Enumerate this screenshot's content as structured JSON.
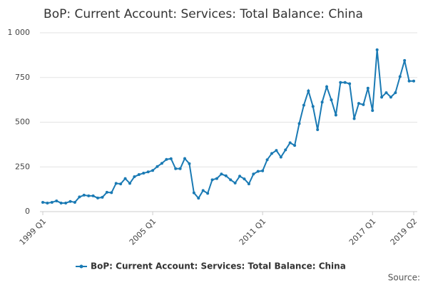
{
  "chart_data": {
    "type": "line",
    "title": "BoP: Current Account: Services: Total Balance: China",
    "categories": [
      "1999 Q1",
      null,
      null,
      null,
      null,
      null,
      null,
      null,
      null,
      null,
      null,
      null,
      null,
      null,
      null,
      null,
      null,
      null,
      null,
      null,
      null,
      null,
      null,
      null,
      "2005 Q1",
      null,
      null,
      null,
      null,
      null,
      null,
      null,
      null,
      null,
      null,
      null,
      null,
      null,
      null,
      null,
      null,
      null,
      null,
      null,
      null,
      null,
      null,
      null,
      "2011 Q1",
      null,
      null,
      null,
      null,
      null,
      null,
      null,
      null,
      null,
      null,
      null,
      null,
      null,
      null,
      null,
      null,
      null,
      null,
      null,
      null,
      null,
      null,
      null,
      "2017 Q1",
      null,
      null,
      null,
      null,
      null,
      null,
      null,
      null,
      "2019 Q2"
    ],
    "series": [
      {
        "name": "BoP: Current Account: Services: Total Balance: China",
        "color": "#1a7ab4",
        "values": [
          52,
          48,
          52,
          60,
          48,
          48,
          57,
          52,
          82,
          92,
          88,
          88,
          76,
          80,
          108,
          106,
          158,
          155,
          185,
          158,
          195,
          207,
          215,
          222,
          230,
          252,
          270,
          292,
          296,
          240,
          240,
          297,
          268,
          105,
          75,
          118,
          102,
          178,
          185,
          210,
          200,
          178,
          160,
          198,
          183,
          155,
          210,
          225,
          228,
          290,
          325,
          342,
          305,
          345,
          385,
          370,
          492,
          595,
          675,
          588,
          458,
          612,
          698,
          625,
          540,
          722,
          722,
          715,
          520,
          605,
          598,
          690,
          565,
          905,
          640,
          665,
          640,
          665,
          755,
          845,
          730,
          730
        ]
      }
    ],
    "ylim": [
      0,
      1000
    ],
    "yticks": [
      0,
      250,
      500,
      750,
      {
        "value": 1000,
        "label": "1 000"
      }
    ],
    "grid": true,
    "legend": "bottom",
    "source": "Source:"
  }
}
